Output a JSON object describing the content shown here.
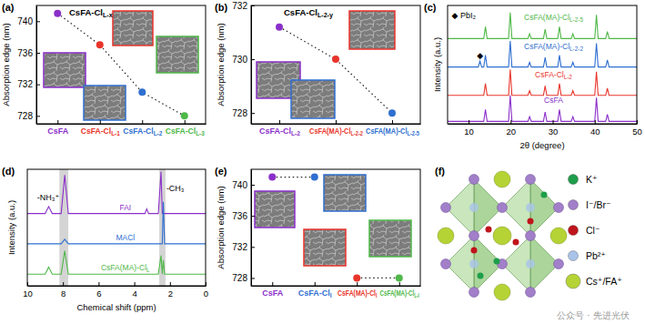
{
  "chart_data": [
    {
      "panel": "(a)",
      "type": "scatter",
      "title": "CsFA-ClL-x",
      "y_label": "Absorption edge (nm)",
      "categories": [
        "CsFA",
        "CsFA-ClL-1",
        "CsFA-ClL-2",
        "CsFA-ClL-3"
      ],
      "series": [
        {
          "values": [
            741,
            737,
            731,
            728
          ],
          "colors": [
            "#8b2fc9",
            "#e8352b",
            "#2f6fd0",
            "#4fb848"
          ],
          "line_style": "dotted",
          "marker": "circle"
        }
      ],
      "ylim": [
        727,
        742
      ],
      "yticks": [
        728,
        732,
        736,
        740
      ]
    },
    {
      "panel": "(b)",
      "type": "scatter",
      "title": "CsFA-ClL-2-y",
      "y_label": "Absorption edge (nm)",
      "categories": [
        "CsFA-ClL-2",
        "CsFA(MA)-ClL-2-2",
        "CsFA(MA)-ClL-2-5"
      ],
      "series": [
        {
          "values": [
            731.2,
            730,
            728
          ],
          "colors": [
            "#8b2fc9",
            "#e8352b",
            "#2f6fd0"
          ],
          "line_style": "dotted",
          "marker": "circle"
        }
      ],
      "ylim": [
        727.6,
        732
      ],
      "yticks": [
        728,
        730,
        732
      ]
    },
    {
      "panel": "(c)",
      "type": "line",
      "x_label": "2θ (degree)",
      "y_label": "Intensity (a.u.)",
      "x": [
        5,
        12.3,
        12.7,
        13.1,
        13.6,
        14.0,
        14.4,
        19.5,
        19.9,
        20.3,
        24.1,
        24.5,
        24.9,
        27.8,
        28.2,
        28.6,
        31.2,
        31.6,
        32.0,
        34.4,
        34.8,
        35.2,
        40.0,
        40.4,
        40.8,
        42.6,
        43.0,
        43.4,
        50
      ],
      "series": [
        {
          "name": "CsFA",
          "color": "#8b2fc9",
          "values": [
            2,
            2,
            2,
            2,
            2,
            12,
            2,
            2,
            24,
            2,
            2,
            6,
            2,
            2,
            10,
            2,
            2,
            12,
            2,
            2,
            6,
            2,
            2,
            22,
            2,
            2,
            8,
            2,
            2
          ]
        },
        {
          "name": "CsFA-ClL-2",
          "color": "#e8352b",
          "values": [
            24,
            24,
            24,
            24,
            24,
            34,
            24,
            24,
            46,
            24,
            24,
            28,
            24,
            24,
            32,
            24,
            24,
            34,
            24,
            24,
            28,
            24,
            24,
            44,
            24,
            24,
            30,
            24,
            24
          ]
        },
        {
          "name": "CsFA(MA)-ClL-2-2",
          "color": "#2f6fd0",
          "values": [
            48,
            48,
            53,
            48,
            48,
            58,
            48,
            48,
            70,
            48,
            48,
            52,
            48,
            48,
            56,
            48,
            48,
            58,
            48,
            48,
            52,
            48,
            48,
            68,
            48,
            48,
            54,
            48,
            48
          ]
        },
        {
          "name": "CsFA(MA)-ClL-2-5",
          "color": "#4fb848",
          "values": [
            72,
            72,
            72,
            72,
            72,
            82,
            72,
            72,
            94,
            72,
            72,
            76,
            72,
            72,
            80,
            72,
            72,
            82,
            72,
            72,
            76,
            72,
            72,
            92,
            72,
            72,
            78,
            72,
            72
          ]
        }
      ],
      "annotations": [
        {
          "text": "◆",
          "x": 12.7,
          "y": 58
        },
        {
          "text": "◆ PbI₂",
          "x": 6,
          "y": 92
        }
      ],
      "xlim": [
        5,
        50
      ],
      "xticks": [
        10,
        20,
        30,
        40,
        50
      ],
      "ylim": [
        0,
        100
      ],
      "tick_labels": "x"
    },
    {
      "panel": "(d)",
      "type": "line",
      "x_label": "Chemical shift (ppm)",
      "y_label": "Intensity (a.u.)",
      "x": [
        10,
        9.0,
        8.8,
        8.6,
        8.1,
        7.9,
        7.7,
        3.4,
        3.3,
        3.2,
        2.65,
        2.5,
        2.43,
        2.37,
        2.3,
        0
      ],
      "series": [
        {
          "name": "FAI",
          "color": "#8b2fc9",
          "values": [
            62,
            62,
            68,
            62,
            62,
            95,
            62,
            62,
            66,
            62,
            62,
            98,
            62,
            62,
            62,
            62
          ]
        },
        {
          "name": "MACl",
          "color": "#2f6fd0",
          "values": [
            36,
            36,
            36,
            36,
            36,
            40,
            36,
            36,
            36,
            36,
            36,
            36,
            36,
            72,
            36,
            36
          ]
        },
        {
          "name": "CsFA(MA)-ClL",
          "color": "#4fb848",
          "values": [
            10,
            10,
            16,
            10,
            10,
            30,
            10,
            10,
            10,
            10,
            10,
            26,
            10,
            22,
            10,
            10
          ]
        }
      ],
      "highlight": [
        [
          8.2,
          7.7
        ],
        [
          2.6,
          2.25
        ]
      ],
      "annotations": [
        {
          "text": "-NH₃⁺",
          "x": 8.2,
          "y": 76
        },
        {
          "text": "-CH₃",
          "x": 2.2,
          "y": 84
        }
      ],
      "xlim": [
        10,
        0
      ],
      "xticks": [
        10,
        8,
        6,
        4,
        2,
        0
      ],
      "ylim": [
        0,
        100
      ],
      "tick_labels": "x"
    },
    {
      "panel": "(e)",
      "type": "scatter",
      "y_label": "Absorption edge (nm)",
      "categories": [
        "CsFA",
        "CsFA-ClI",
        "CsFA(MA)-ClI",
        "CsFA(MA)-ClL-I"
      ],
      "series": [
        {
          "values": [
            741,
            741,
            null,
            null
          ],
          "colors": [
            "#8b2fc9",
            "#2f6fd0",
            null,
            null
          ],
          "line_style": "dotted",
          "marker": "circle"
        },
        {
          "values": [
            null,
            null,
            728,
            728
          ],
          "colors": [
            null,
            null,
            "#e8352b",
            "#4fb848"
          ],
          "line_style": "dotted",
          "marker": "circle"
        }
      ],
      "ylim": [
        727,
        742
      ],
      "yticks": [
        728,
        732,
        736,
        740
      ]
    }
  ],
  "diagram": {
    "panel": "(f)",
    "legend": [
      {
        "text": "K⁺",
        "color": "#1e9e4a"
      },
      {
        "text": "I⁻/Br⁻",
        "color": "#a27fc9"
      },
      {
        "text": "Cl⁻",
        "color": "#c0141c"
      },
      {
        "text": "Pb²⁺",
        "color": "#a9c4e8"
      },
      {
        "text": "Cs⁺/FA⁺",
        "color": "#b5d334"
      }
    ]
  },
  "watermark": "公众号 · 先进光伏"
}
